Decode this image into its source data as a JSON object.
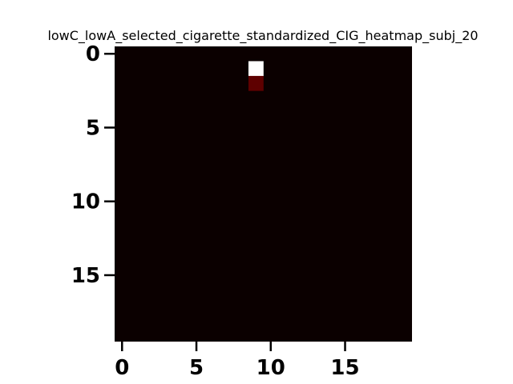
{
  "chart_data": {
    "type": "heatmap",
    "title": "lowC_lowA_selected_cigarette_standardized_CIG_heatmap_subj_20",
    "xlabel": "",
    "ylabel": "",
    "rows": 20,
    "cols": 20,
    "x_ticks": [
      0,
      5,
      10,
      15
    ],
    "y_ticks": [
      0,
      5,
      10,
      15
    ],
    "x_tick_labels": [
      "0",
      "5",
      "10",
      "15"
    ],
    "y_tick_labels": [
      "0",
      "5",
      "10",
      "15"
    ],
    "colormap": "hot",
    "background_value": 0.0,
    "background_color": "#0b0000",
    "vmin": 0.0,
    "vmax": 1.0,
    "nonzero_cells": [
      {
        "row": 1,
        "col": 9,
        "value": 1.0,
        "color": "#ffffff"
      },
      {
        "row": 2,
        "col": 9,
        "value": 0.15,
        "color": "#5e0000"
      }
    ],
    "grid": false,
    "legend": "none"
  }
}
